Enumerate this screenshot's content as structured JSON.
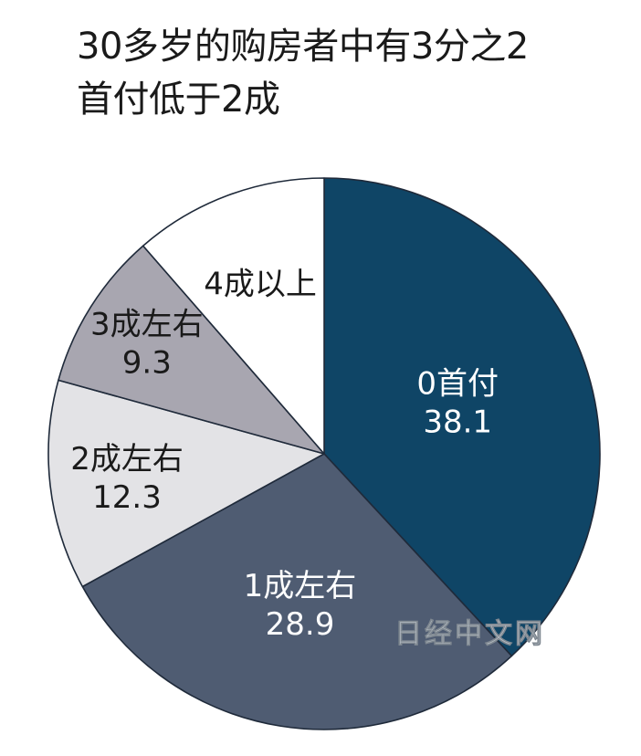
{
  "title": [
    "30多岁的购房者中有3分之2",
    "首付低于2成"
  ],
  "watermark": "日经中文网",
  "colors": {
    "edge": "#1f2a3a",
    "text_dark": "#1a1a1a",
    "text_light": "#ffffff",
    "watermark": "#b8bfc6"
  },
  "chart_data": {
    "type": "pie",
    "title": "30多岁的购房者中有3分之2首付低于2成",
    "start": "12 o'clock",
    "direction": "clockwise",
    "slices": [
      {
        "label": "0首付",
        "value": 38.1,
        "value_text": "38.1",
        "color": "#0f4566",
        "text_color": "light"
      },
      {
        "label": "1成左右",
        "value": 28.9,
        "value_text": "28.9",
        "color": "#4f5c72",
        "text_color": "light"
      },
      {
        "label": "2成左右",
        "value": 12.3,
        "value_text": "12.3",
        "color": "#e3e3e6",
        "text_color": "dark"
      },
      {
        "label": "3成左右",
        "value": 9.3,
        "value_text": "9.3",
        "color": "#a8a6b0",
        "text_color": "dark"
      },
      {
        "label": "4成以上",
        "value": 11.4,
        "value_text": "",
        "color": "#ffffff",
        "text_color": "dark"
      }
    ]
  }
}
